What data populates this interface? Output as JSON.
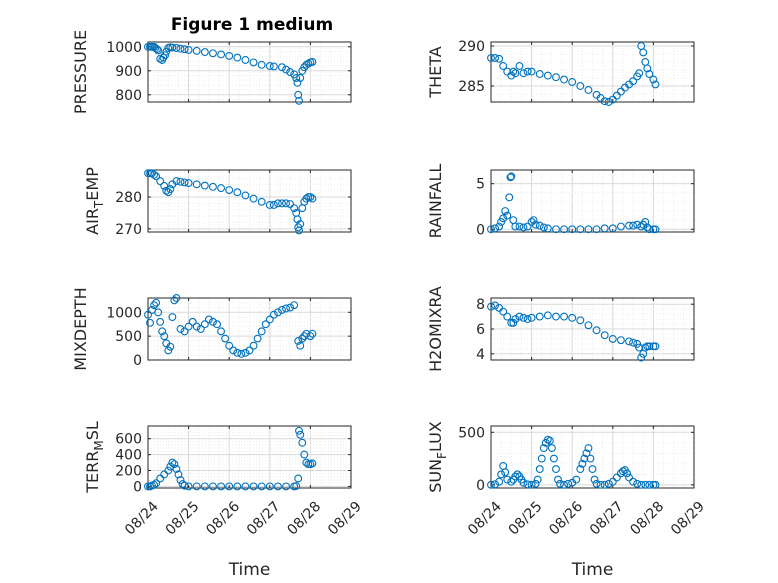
{
  "figure": {
    "title": "Figure 1 medium"
  },
  "colors": {
    "marker": "#0072BD",
    "axis": "#262626",
    "grid": "#dcdcdc"
  },
  "chart_data": [
    {
      "type": "scatter",
      "ylabel": "PRESSURE",
      "title": "Figure 1 medium",
      "ylim": [
        770,
        1020
      ],
      "yticks": [
        800,
        900,
        1000
      ],
      "ytick_labels": [
        "800",
        "900",
        "1000"
      ],
      "xlim": [
        0,
        5
      ],
      "x": [
        0.0,
        0.05,
        0.1,
        0.15,
        0.18,
        0.22,
        0.25,
        0.3,
        0.35,
        0.38,
        0.42,
        0.45,
        0.5,
        0.55,
        0.6,
        0.7,
        0.8,
        0.9,
        1.0,
        1.2,
        1.4,
        1.6,
        1.8,
        2.0,
        2.2,
        2.4,
        2.6,
        2.8,
        3.0,
        3.1,
        3.3,
        3.4,
        3.5,
        3.6,
        3.65,
        3.68,
        3.7,
        3.72,
        3.75,
        3.8,
        3.85,
        3.9,
        3.95,
        4.0,
        4.05
      ],
      "y": [
        1000,
        1000,
        1000,
        1000,
        995,
        990,
        985,
        950,
        945,
        955,
        965,
        980,
        995,
        998,
        997,
        995,
        992,
        990,
        987,
        983,
        978,
        973,
        968,
        962,
        955,
        945,
        935,
        925,
        920,
        918,
        915,
        905,
        895,
        885,
        870,
        850,
        800,
        775,
        870,
        900,
        915,
        925,
        930,
        935,
        937
      ],
      "series": [
        {
          "name": "",
          "marker": "circle"
        }
      ]
    },
    {
      "type": "scatter",
      "ylabel": "THETA",
      "ylim": [
        283,
        290.5
      ],
      "yticks": [
        285,
        290
      ],
      "ytick_labels": [
        "285",
        "290"
      ],
      "xlim": [
        0,
        5
      ],
      "x": [
        0.0,
        0.1,
        0.2,
        0.3,
        0.4,
        0.5,
        0.55,
        0.6,
        0.7,
        0.8,
        0.9,
        1.0,
        1.2,
        1.4,
        1.6,
        1.8,
        2.0,
        2.2,
        2.4,
        2.6,
        2.7,
        2.8,
        2.9,
        3.0,
        3.1,
        3.2,
        3.3,
        3.4,
        3.5,
        3.6,
        3.65,
        3.7,
        3.75,
        3.8,
        3.85,
        3.9,
        4.0,
        4.05
      ],
      "y": [
        288.5,
        288.5,
        288.4,
        287.5,
        286.8,
        286.3,
        286.8,
        286.6,
        287.5,
        286.6,
        286.8,
        286.8,
        286.5,
        286.3,
        286.1,
        285.8,
        285.5,
        285.0,
        284.5,
        283.9,
        283.5,
        283.1,
        283.0,
        283.3,
        283.8,
        284.3,
        284.8,
        285.2,
        285.6,
        286.2,
        286.6,
        290.0,
        289.2,
        288.0,
        287.2,
        286.5,
        285.8,
        285.2
      ],
      "series": [
        {
          "name": "",
          "marker": "circle"
        }
      ]
    },
    {
      "type": "scatter",
      "ylabel": "AIR_TEMP",
      "ylim": [
        269,
        288.5
      ],
      "yticks": [
        270,
        280
      ],
      "ytick_labels": [
        "270",
        "280"
      ],
      "xlim": [
        0,
        5
      ],
      "x": [
        0.0,
        0.05,
        0.1,
        0.15,
        0.2,
        0.3,
        0.4,
        0.45,
        0.5,
        0.55,
        0.6,
        0.7,
        0.8,
        0.9,
        1.0,
        1.2,
        1.4,
        1.6,
        1.8,
        2.0,
        2.2,
        2.4,
        2.6,
        2.8,
        3.0,
        3.1,
        3.2,
        3.3,
        3.4,
        3.5,
        3.6,
        3.65,
        3.68,
        3.7,
        3.72,
        3.75,
        3.8,
        3.85,
        3.9,
        3.95,
        4.0,
        4.05
      ],
      "y": [
        287.5,
        287.5,
        287.5,
        287.0,
        286.5,
        285.0,
        283.5,
        282.0,
        281.5,
        282.5,
        284.0,
        285.0,
        284.8,
        284.6,
        284.4,
        284.0,
        283.6,
        283.2,
        282.8,
        282.2,
        281.5,
        280.5,
        279.5,
        278.5,
        277.5,
        277.5,
        278.0,
        278.0,
        278.0,
        277.8,
        276.5,
        275.0,
        273.0,
        270.5,
        269.5,
        271.5,
        276.5,
        278.5,
        279.5,
        280.0,
        280.0,
        279.5
      ],
      "series": [
        {
          "name": "",
          "marker": "circle"
        }
      ]
    },
    {
      "type": "scatter",
      "ylabel": "RAINFALL",
      "ylim": [
        -0.3,
        6.5
      ],
      "yticks": [
        0,
        5
      ],
      "ytick_labels": [
        "0",
        "5"
      ],
      "xlim": [
        0,
        5
      ],
      "x": [
        0.0,
        0.1,
        0.2,
        0.25,
        0.3,
        0.35,
        0.4,
        0.45,
        0.48,
        0.5,
        0.55,
        0.6,
        0.7,
        0.8,
        0.9,
        1.0,
        1.05,
        1.1,
        1.2,
        1.3,
        1.4,
        1.6,
        1.8,
        2.0,
        2.2,
        2.4,
        2.6,
        2.8,
        3.0,
        3.2,
        3.4,
        3.5,
        3.6,
        3.7,
        3.75,
        3.8,
        3.85,
        3.9,
        4.0,
        4.05
      ],
      "y": [
        0.0,
        0.1,
        0.3,
        0.8,
        1.2,
        2.0,
        1.5,
        3.5,
        5.7,
        5.8,
        1.0,
        0.3,
        0.3,
        0.2,
        0.3,
        0.8,
        1.0,
        0.5,
        0.4,
        0.2,
        0.1,
        0.0,
        0.0,
        0.0,
        0.0,
        0.0,
        0.0,
        0.1,
        0.1,
        0.3,
        0.4,
        0.4,
        0.5,
        0.3,
        0.5,
        0.8,
        0.2,
        0.0,
        0.0,
        0.0
      ],
      "series": [
        {
          "name": "",
          "marker": "circle"
        }
      ]
    },
    {
      "type": "scatter",
      "ylabel": "MIXDEPTH",
      "ylim": [
        0,
        1300
      ],
      "yticks": [
        0,
        500,
        1000
      ],
      "ytick_labels": [
        "0",
        "500",
        "1000"
      ],
      "xlim": [
        0,
        5
      ],
      "x": [
        0.0,
        0.05,
        0.1,
        0.15,
        0.2,
        0.25,
        0.3,
        0.35,
        0.4,
        0.45,
        0.5,
        0.55,
        0.6,
        0.65,
        0.7,
        0.8,
        0.9,
        1.0,
        1.1,
        1.2,
        1.3,
        1.4,
        1.5,
        1.6,
        1.7,
        1.8,
        1.9,
        2.0,
        2.1,
        2.2,
        2.3,
        2.4,
        2.5,
        2.6,
        2.7,
        2.8,
        2.9,
        3.0,
        3.1,
        3.2,
        3.3,
        3.4,
        3.5,
        3.6,
        3.7,
        3.75,
        3.8,
        3.85,
        3.9,
        4.0,
        4.05
      ],
      "y": [
        950,
        780,
        1050,
        1150,
        1200,
        1000,
        800,
        600,
        500,
        350,
        200,
        280,
        900,
        1250,
        1300,
        650,
        600,
        700,
        800,
        700,
        650,
        750,
        850,
        800,
        750,
        600,
        450,
        300,
        200,
        150,
        130,
        150,
        200,
        300,
        450,
        600,
        750,
        850,
        950,
        1000,
        1050,
        1080,
        1100,
        1150,
        400,
        300,
        450,
        500,
        550,
        500,
        550
      ],
      "series": [
        {
          "name": "",
          "marker": "circle"
        }
      ]
    },
    {
      "type": "scatter",
      "ylabel": "H2OMIXRA",
      "ylim": [
        3.5,
        8.5
      ],
      "yticks": [
        4,
        6,
        8
      ],
      "ytick_labels": [
        "4",
        "6",
        "8"
      ],
      "xlim": [
        0,
        5
      ],
      "x": [
        0.0,
        0.1,
        0.2,
        0.3,
        0.4,
        0.5,
        0.55,
        0.6,
        0.7,
        0.8,
        0.9,
        1.0,
        1.2,
        1.4,
        1.6,
        1.8,
        2.0,
        2.2,
        2.4,
        2.6,
        2.8,
        3.0,
        3.2,
        3.4,
        3.5,
        3.6,
        3.65,
        3.7,
        3.75,
        3.8,
        3.85,
        3.9,
        4.0,
        4.05
      ],
      "y": [
        7.8,
        7.9,
        7.7,
        7.4,
        7.0,
        6.5,
        6.5,
        6.8,
        7.0,
        6.9,
        6.8,
        6.9,
        7.0,
        7.1,
        7.0,
        7.0,
        6.9,
        6.7,
        6.3,
        5.9,
        5.5,
        5.2,
        5.1,
        5.0,
        4.9,
        4.8,
        4.5,
        3.7,
        4.0,
        4.5,
        4.6,
        4.6,
        4.6,
        4.6
      ],
      "series": [
        {
          "name": "",
          "marker": "circle"
        }
      ]
    },
    {
      "type": "scatter",
      "ylabel": "TERR_MSL",
      "ylim": [
        -20,
        760
      ],
      "yticks": [
        0,
        200,
        400,
        600
      ],
      "ytick_labels": [
        "0",
        "200",
        "400",
        "600"
      ],
      "xtick_labels": [
        "08/24",
        "08/25",
        "08/26",
        "08/27",
        "08/28",
        "08/29"
      ],
      "xticks": [
        0,
        1,
        2,
        3,
        4,
        5
      ],
      "xlabel": "Time",
      "xlim": [
        0,
        5
      ],
      "x": [
        0.0,
        0.05,
        0.1,
        0.15,
        0.2,
        0.3,
        0.4,
        0.5,
        0.55,
        0.6,
        0.65,
        0.7,
        0.75,
        0.8,
        0.85,
        0.9,
        1.0,
        1.2,
        1.4,
        1.6,
        1.8,
        2.0,
        2.2,
        2.4,
        2.6,
        2.8,
        3.0,
        3.2,
        3.4,
        3.6,
        3.65,
        3.7,
        3.72,
        3.75,
        3.8,
        3.85,
        3.9,
        3.95,
        4.0,
        4.05
      ],
      "y": [
        0,
        0,
        10,
        20,
        40,
        100,
        150,
        200,
        250,
        300,
        280,
        220,
        150,
        80,
        30,
        10,
        0,
        0,
        0,
        0,
        0,
        0,
        0,
        0,
        0,
        0,
        0,
        0,
        0,
        0,
        5,
        100,
        700,
        650,
        550,
        400,
        300,
        280,
        280,
        290
      ],
      "series": [
        {
          "name": "",
          "marker": "circle"
        }
      ]
    },
    {
      "type": "scatter",
      "ylabel": "SUN_FLUX",
      "ylim": [
        -30,
        560
      ],
      "yticks": [
        0,
        500
      ],
      "ytick_labels": [
        "0",
        "500"
      ],
      "xtick_labels": [
        "08/24",
        "08/25",
        "08/26",
        "08/27",
        "08/28",
        "08/29"
      ],
      "xticks": [
        0,
        1,
        2,
        3,
        4,
        5
      ],
      "xlabel": "Time",
      "xlim": [
        0,
        5
      ],
      "x": [
        0.0,
        0.1,
        0.2,
        0.25,
        0.3,
        0.35,
        0.4,
        0.5,
        0.55,
        0.6,
        0.65,
        0.7,
        0.75,
        0.8,
        0.9,
        1.0,
        1.1,
        1.15,
        1.2,
        1.25,
        1.3,
        1.35,
        1.4,
        1.45,
        1.5,
        1.55,
        1.6,
        1.65,
        1.7,
        1.8,
        1.9,
        2.0,
        2.1,
        2.2,
        2.25,
        2.3,
        2.35,
        2.4,
        2.45,
        2.5,
        2.55,
        2.6,
        2.7,
        2.8,
        2.9,
        3.0,
        3.1,
        3.2,
        3.25,
        3.3,
        3.35,
        3.4,
        3.5,
        3.6,
        3.7,
        3.8,
        3.9,
        4.0,
        4.05
      ],
      "y": [
        0,
        5,
        30,
        100,
        180,
        120,
        50,
        30,
        50,
        80,
        100,
        80,
        50,
        20,
        5,
        0,
        10,
        50,
        150,
        250,
        350,
        400,
        430,
        420,
        350,
        250,
        150,
        50,
        10,
        0,
        10,
        20,
        50,
        150,
        200,
        250,
        300,
        350,
        250,
        150,
        50,
        10,
        0,
        0,
        10,
        30,
        70,
        110,
        130,
        140,
        110,
        70,
        30,
        10,
        0,
        0,
        0,
        0,
        0
      ],
      "series": [
        {
          "name": "",
          "marker": "circle"
        }
      ]
    }
  ]
}
